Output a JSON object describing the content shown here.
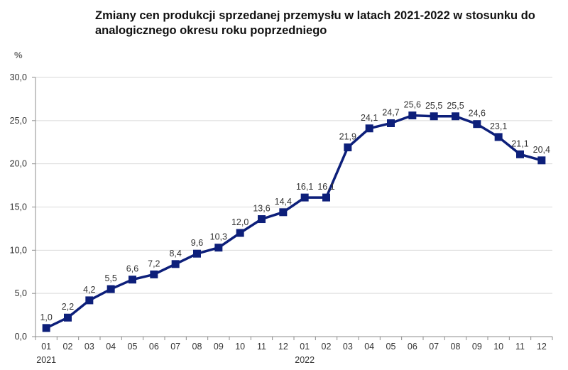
{
  "chart_data": {
    "type": "line",
    "title": "Zmiany cen produkcji sprzedanej przemysłu w latach 2021-2022 w stosunku do analogicznego okresu roku poprzedniego",
    "ylabel": "%",
    "xlabel": "",
    "ylim": [
      0,
      30
    ],
    "y_ticks": [
      "0,0",
      "5,0",
      "10,0",
      "15,0",
      "20,0",
      "25,0",
      "30,0"
    ],
    "y_tick_values": [
      0,
      5,
      10,
      15,
      20,
      25,
      30
    ],
    "grid": true,
    "x": [
      "01",
      "02",
      "03",
      "04",
      "05",
      "06",
      "07",
      "08",
      "09",
      "10",
      "11",
      "12",
      "01",
      "02",
      "03",
      "04",
      "05",
      "06",
      "07",
      "08",
      "09",
      "10",
      "11",
      "12"
    ],
    "years": [
      {
        "label": "2021",
        "start_index": 0
      },
      {
        "label": "2022",
        "start_index": 12
      }
    ],
    "series": [
      {
        "values": [
          1.0,
          2.2,
          4.2,
          5.5,
          6.6,
          7.2,
          8.4,
          9.6,
          10.3,
          12.0,
          13.6,
          14.4,
          16.1,
          16.1,
          21.9,
          24.1,
          24.7,
          25.6,
          25.5,
          25.5,
          24.6,
          23.1,
          21.1,
          20.4
        ],
        "data_labels": [
          "1,0",
          "2,2",
          "4,2",
          "5,5",
          "6,6",
          "7,2",
          "8,4",
          "9,6",
          "10,3",
          "12,0",
          "13,6",
          "14,4",
          "16,1",
          "16,1",
          "21,9",
          "24,1",
          "24,7",
          "25,6",
          "25,5",
          "25,5",
          "24,6",
          "23,1",
          "21,1",
          "20,4"
        ],
        "color": "#0d1f7a"
      }
    ],
    "colors": {
      "line": "#0d1f7a",
      "marker": "#0d1f7a",
      "grid": "#d9d9d9",
      "axis": "#8c8c8c"
    }
  }
}
